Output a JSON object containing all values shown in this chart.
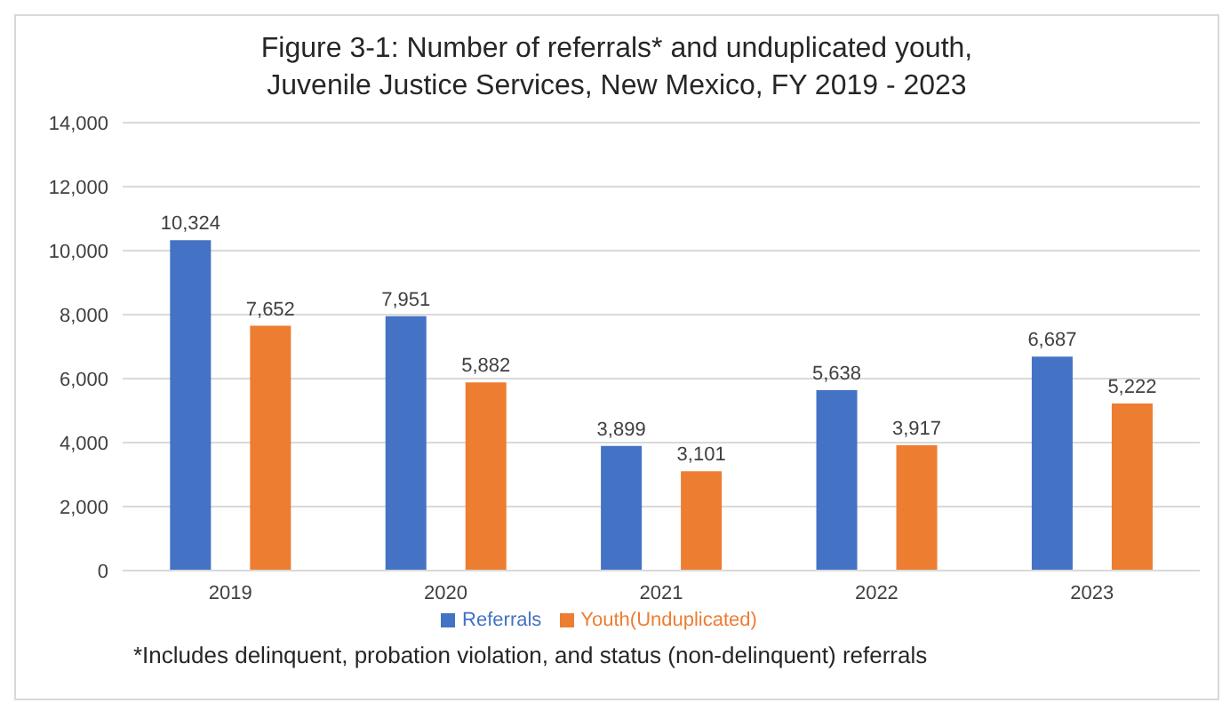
{
  "chart_data": {
    "type": "bar",
    "title": "Figure 3-1: Number of referrals* and unduplicated youth,\nJuvenile Justice Services, New Mexico, FY 2019 - 2023",
    "categories": [
      "2019",
      "2020",
      "2021",
      "2022",
      "2023"
    ],
    "series": [
      {
        "name": "Referrals",
        "color": "#4472c4",
        "values": [
          10324,
          7951,
          3899,
          5638,
          6687
        ],
        "value_labels": [
          "10,324",
          "7,951",
          "3,899",
          "5,638",
          "6,687"
        ]
      },
      {
        "name": "Youth(Unduplicated)",
        "color": "#ed7d31",
        "values": [
          7652,
          5882,
          3101,
          3917,
          5222
        ],
        "value_labels": [
          "7,652",
          "5,882",
          "3,101",
          "3,917",
          "5,222"
        ]
      }
    ],
    "ylim": [
      0,
      14000
    ],
    "yticks": [
      {
        "value": 0,
        "label": "0"
      },
      {
        "value": 2000,
        "label": "2,000"
      },
      {
        "value": 4000,
        "label": "4,000"
      },
      {
        "value": 6000,
        "label": "6,000"
      },
      {
        "value": 8000,
        "label": "8,000"
      },
      {
        "value": 10000,
        "label": "10,000"
      },
      {
        "value": 12000,
        "label": "12,000"
      },
      {
        "value": 14000,
        "label": "14,000"
      }
    ],
    "grid": "y",
    "legend": "bottom",
    "annotations": [
      "*Includes delinquent, probation violation, and status (non-delinquent) referrals"
    ]
  }
}
